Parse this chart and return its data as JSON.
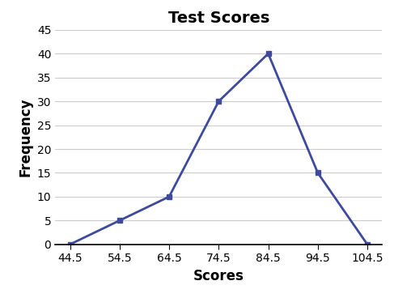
{
  "title": "Test Scores",
  "xlabel": "Scores",
  "ylabel": "Frequency",
  "x_values": [
    44.5,
    54.5,
    64.5,
    74.5,
    84.5,
    94.5,
    104.5
  ],
  "y_values": [
    0,
    5,
    10,
    30,
    40,
    15,
    0
  ],
  "line_color": "#3d4a9e",
  "marker": "s",
  "marker_size": 5,
  "linewidth": 2.0,
  "ylim": [
    0,
    45
  ],
  "yticks": [
    0,
    5,
    10,
    15,
    20,
    25,
    30,
    35,
    40,
    45
  ],
  "xticks": [
    44.5,
    54.5,
    64.5,
    74.5,
    84.5,
    94.5,
    104.5
  ],
  "title_fontsize": 14,
  "axis_label_fontsize": 12,
  "tick_fontsize": 10,
  "background_color": "#ffffff",
  "grid_color": "#cccccc"
}
